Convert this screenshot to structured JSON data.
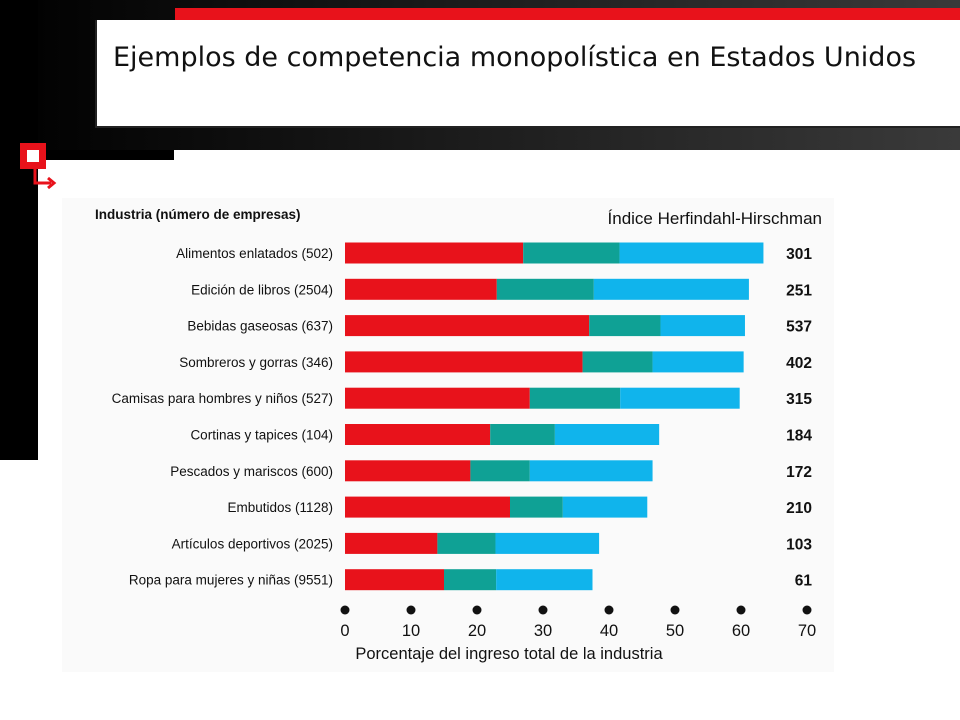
{
  "slide": {
    "title": "Ejemplos de competencia monopolística en Estados Unidos"
  },
  "colors": {
    "top4": "#e8121b",
    "next4": "#0fa195",
    "next12": "#10b4ec",
    "accent": "#e8121b"
  },
  "chart_data": {
    "type": "bar",
    "orientation": "horizontal",
    "stacked": true,
    "category_header": "Industria (número de empresas)",
    "index_header": "Índice Herfindahl-Hirschman",
    "xlabel": "Porcentaje del ingreso total de la industria",
    "xlim": [
      0,
      70
    ],
    "xticks": [
      0,
      10,
      20,
      30,
      40,
      50,
      60,
      70
    ],
    "categories": [
      "Alimentos enlatados (502)",
      "Edición de libros (2504)",
      "Bebidas gaseosas (637)",
      "Sombreros y gorras (346)",
      "Camisas para hombres y niños (527)",
      "Cortinas y tapices (104)",
      "Pescados y mariscos (600)",
      "Embutidos (1128)",
      "Artículos deportivos (2025)",
      "Ropa para mujeres y niñas (9551)"
    ],
    "series": [
      {
        "values": [
          27,
          23,
          37,
          36,
          28,
          22,
          19,
          25,
          14,
          15
        ]
      },
      {
        "values": [
          14.6,
          14.7,
          10.8,
          10.6,
          13.7,
          9.8,
          9,
          8,
          8.8,
          7.9
        ]
      },
      {
        "values": [
          21.8,
          23.5,
          12.8,
          13.8,
          18.1,
          15.8,
          18.6,
          12.8,
          15.7,
          14.6
        ]
      }
    ],
    "hhi": [
      "301",
      "251",
      "537",
      "402",
      "315",
      "184",
      "172",
      "210",
      "103",
      "61"
    ]
  }
}
